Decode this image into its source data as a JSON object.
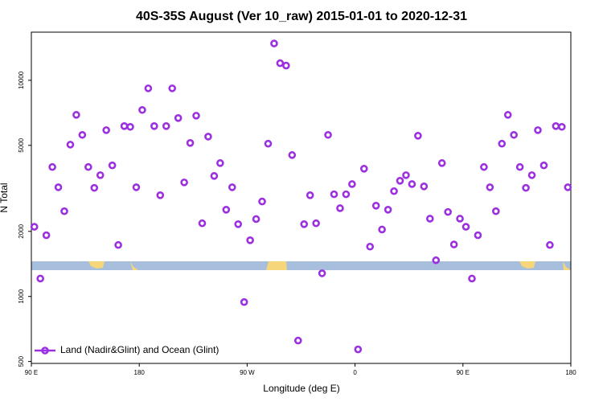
{
  "chart_data": {
    "type": "scatter",
    "title": "40S-35S August (Ver 10_raw)   2015-01-01 to 2020-12-31",
    "x_label": "Longitude (deg E)",
    "y_label": "N Total",
    "log_y": true,
    "legend_position": "bottom-left",
    "xlim": [
      90,
      540
    ],
    "ylim": [
      490,
      16700
    ],
    "xticks": [
      {
        "value": 90,
        "label": "90 E"
      },
      {
        "value": 180,
        "label": "180"
      },
      {
        "value": 270,
        "label": "90 W"
      },
      {
        "value": 360,
        "label": "0"
      },
      {
        "value": 450,
        "label": "90 E"
      },
      {
        "value": 540,
        "label": "180"
      }
    ],
    "yticks": [
      500,
      1000,
      2000,
      5000,
      10000
    ],
    "series": [
      {
        "name": "Land (Nadir&Glint) and Ocean (Glint)",
        "color": "#9b30e0",
        "x": [
          92.5,
          97.5,
          102.5,
          107.5,
          112.5,
          117.5,
          122.5,
          127.5,
          132.5,
          137.5,
          142.5,
          147.5,
          152.5,
          157.5,
          162.5,
          167.5,
          172.5,
          177.5,
          182.5,
          187.5,
          192.5,
          197.5,
          202.5,
          207.5,
          212.5,
          217.5,
          222.5,
          227.5,
          232.5,
          237.5,
          242.5,
          247.5,
          252.5,
          257.5,
          262.5,
          267.5,
          272.5,
          277.5,
          282.5,
          287.5,
          292.5,
          297.5,
          302.5,
          307.5,
          312.5,
          317.5,
          322.5,
          327.5,
          332.5,
          337.5,
          342.5,
          347.5,
          352.5,
          357.5,
          362.5,
          367.5,
          372.5,
          377.5,
          382.5,
          387.5,
          392.5,
          397.5,
          402.5,
          407.5,
          412.5,
          417.5,
          422.5,
          427.5,
          432.5,
          437.5,
          442.5,
          447.5,
          452.5,
          457.5,
          462.5,
          467.5,
          472.5,
          477.5,
          482.5,
          487.5,
          492.5,
          497.5,
          502.5,
          507.5,
          512.5,
          517.5,
          522.5,
          527.5,
          532.5,
          537.5
        ],
        "values": [
          2100,
          1210,
          1920,
          3970,
          3200,
          2480,
          5040,
          6920,
          5590,
          3970,
          3180,
          3640,
          5880,
          4040,
          1730,
          6140,
          6090,
          3200,
          7290,
          9180,
          6140,
          2940,
          6140,
          9180,
          6690,
          3370,
          5130,
          6860,
          2180,
          5490,
          3610,
          4140,
          2520,
          3200,
          2160,
          942,
          1820,
          2280,
          2750,
          5090,
          14800,
          12000,
          11700,
          4510,
          625,
          2160,
          2940,
          2180,
          1280,
          5590,
          2970,
          2560,
          2970,
          3310,
          569,
          3900,
          1700,
          2630,
          2040,
          2520,
          3070,
          3430,
          3640,
          3310,
          5540,
          3230,
          2290,
          1470,
          4140,
          2460,
          1740,
          2290,
          2100,
          1210,
          1920,
          3970,
          3200,
          2480,
          5090,
          6920,
          5590,
          3970,
          3180,
          3640,
          5880,
          4040,
          1730,
          6140,
          6090,
          3200
        ]
      }
    ]
  }
}
